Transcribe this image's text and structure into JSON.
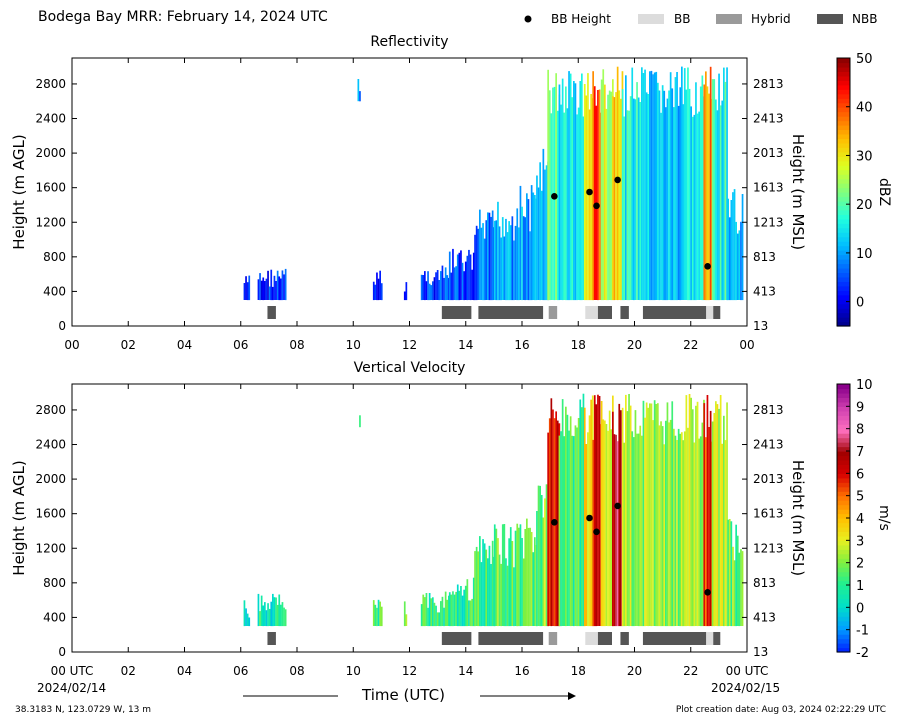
{
  "header": {
    "title": "Bodega Bay MRR:  February 14, 2024 UTC",
    "legend": [
      {
        "label": "BB Height",
        "kind": "marker",
        "color": "#000000"
      },
      {
        "label": "BB",
        "kind": "swatch",
        "color": "#dcdcdc"
      },
      {
        "label": "Hybrid",
        "kind": "swatch",
        "color": "#9a9a9a"
      },
      {
        "label": "NBB",
        "kind": "swatch",
        "color": "#555555"
      }
    ]
  },
  "chart_data": [
    {
      "type": "heatmap",
      "title": "Reflectivity",
      "ylabel": "Height (m AGL)",
      "ylabel_right": "Height (m MSL)",
      "x_ticks": [
        "00",
        "02",
        "04",
        "06",
        "08",
        "10",
        "12",
        "14",
        "16",
        "18",
        "20",
        "22",
        "00"
      ],
      "xlim": [
        0,
        24
      ],
      "y_ticks": [
        0,
        400,
        800,
        1200,
        1600,
        2000,
        2400,
        2800
      ],
      "ylim": [
        0,
        3100
      ],
      "y_right_ticks": [
        13,
        413,
        813,
        1213,
        1613,
        2013,
        2413,
        2813
      ],
      "colorbar": {
        "label": "dBZ",
        "ticks": [
          0,
          10,
          20,
          30,
          40,
          50
        ],
        "range": [
          -5,
          50
        ]
      },
      "bb_height_points": [
        [
          17.15,
          1500
        ],
        [
          18.4,
          1550
        ],
        [
          18.65,
          1390
        ],
        [
          19.4,
          1690
        ],
        [
          22.6,
          690
        ]
      ],
      "classification_bars": [
        {
          "class": "NBB",
          "start": 6.95,
          "end": 7.25
        },
        {
          "class": "NBB",
          "start": 13.15,
          "end": 14.2
        },
        {
          "class": "NBB",
          "start": 14.45,
          "end": 16.75
        },
        {
          "class": "Hybrid",
          "start": 16.95,
          "end": 17.25
        },
        {
          "class": "BB",
          "start": 18.25,
          "end": 18.7
        },
        {
          "class": "NBB",
          "start": 18.7,
          "end": 19.2
        },
        {
          "class": "NBB",
          "start": 19.5,
          "end": 19.8
        },
        {
          "class": "NBB",
          "start": 20.3,
          "end": 22.55
        },
        {
          "class": "BB",
          "start": 22.55,
          "end": 22.8
        },
        {
          "class": "NBB",
          "start": 22.8,
          "end": 23.05
        }
      ],
      "echo_columns": [
        {
          "start": 6.1,
          "end": 6.3,
          "top": 600,
          "value": 2
        },
        {
          "start": 6.6,
          "end": 7.6,
          "top": 680,
          "value": 3
        },
        {
          "start": 10.15,
          "end": 10.25,
          "top": 3000,
          "value": 8,
          "bottom": 2600
        },
        {
          "start": 10.7,
          "end": 11.0,
          "top": 650,
          "value": 3
        },
        {
          "start": 11.8,
          "end": 11.9,
          "top": 600,
          "value": 2
        },
        {
          "start": 12.4,
          "end": 13.4,
          "top": 700,
          "value": 4
        },
        {
          "start": 13.4,
          "end": 14.3,
          "top": 900,
          "value": 5
        },
        {
          "start": 14.3,
          "end": 15.0,
          "top": 1350,
          "value": 7
        },
        {
          "start": 15.0,
          "end": 15.8,
          "top": 1500,
          "value": 9
        },
        {
          "start": 15.8,
          "end": 16.5,
          "top": 1650,
          "value": 10
        },
        {
          "start": 16.5,
          "end": 16.9,
          "top": 2100,
          "value": 13
        },
        {
          "start": 16.9,
          "end": 17.3,
          "top": 3000,
          "value": 22
        },
        {
          "start": 17.3,
          "end": 18.2,
          "top": 3000,
          "value": 14
        },
        {
          "start": 18.2,
          "end": 18.5,
          "top": 3000,
          "value": 30
        },
        {
          "start": 18.5,
          "end": 18.8,
          "top": 3000,
          "value": 40
        },
        {
          "start": 18.8,
          "end": 19.2,
          "top": 3000,
          "value": 26
        },
        {
          "start": 19.2,
          "end": 19.55,
          "top": 3000,
          "value": 34
        },
        {
          "start": 19.55,
          "end": 20.4,
          "top": 3000,
          "value": 16
        },
        {
          "start": 20.4,
          "end": 21.7,
          "top": 3000,
          "value": 12
        },
        {
          "start": 21.7,
          "end": 22.45,
          "top": 3000,
          "value": 15
        },
        {
          "start": 22.45,
          "end": 22.75,
          "top": 3000,
          "value": 36
        },
        {
          "start": 22.75,
          "end": 23.3,
          "top": 3000,
          "value": 17
        },
        {
          "start": 23.3,
          "end": 23.85,
          "top": 1600,
          "value": 12
        }
      ]
    },
    {
      "type": "heatmap",
      "title": "Vertical Velocity",
      "ylabel": "Height (m AGL)",
      "ylabel_right": "Height (m MSL)",
      "x_ticks": [
        "00 UTC",
        "02",
        "04",
        "06",
        "08",
        "10",
        "12",
        "14",
        "16",
        "18",
        "20",
        "22",
        "00 UTC"
      ],
      "xlim": [
        0,
        24
      ],
      "y_ticks": [
        0,
        400,
        800,
        1200,
        1600,
        2000,
        2400,
        2800
      ],
      "ylim": [
        0,
        3100
      ],
      "y_right_ticks": [
        13,
        413,
        813,
        1213,
        1613,
        2013,
        2413,
        2813
      ],
      "colorbar": {
        "label": "m/s",
        "ticks": [
          -2,
          -1,
          0,
          1,
          2,
          3,
          4,
          5,
          6,
          7,
          8,
          9,
          10
        ],
        "range": [
          -2,
          10
        ]
      },
      "bb_height_points": [
        [
          17.15,
          1500
        ],
        [
          18.4,
          1550
        ],
        [
          18.65,
          1390
        ],
        [
          19.4,
          1690
        ],
        [
          22.6,
          690
        ]
      ],
      "classification_bars": [
        {
          "class": "NBB",
          "start": 6.95,
          "end": 7.25
        },
        {
          "class": "NBB",
          "start": 13.15,
          "end": 14.2
        },
        {
          "class": "NBB",
          "start": 14.45,
          "end": 16.75
        },
        {
          "class": "Hybrid",
          "start": 16.95,
          "end": 17.25
        },
        {
          "class": "BB",
          "start": 18.25,
          "end": 18.7
        },
        {
          "class": "NBB",
          "start": 18.7,
          "end": 19.2
        },
        {
          "class": "NBB",
          "start": 19.5,
          "end": 19.8
        },
        {
          "class": "NBB",
          "start": 20.3,
          "end": 22.55
        },
        {
          "class": "BB",
          "start": 22.55,
          "end": 22.8
        },
        {
          "class": "NBB",
          "start": 22.8,
          "end": 23.05
        }
      ],
      "echo_columns": [
        {
          "start": 6.1,
          "end": 6.3,
          "top": 600,
          "value": 0.5
        },
        {
          "start": 6.6,
          "end": 7.6,
          "top": 680,
          "value": 0.6
        },
        {
          "start": 10.15,
          "end": 10.25,
          "top": 3000,
          "value": 1.5,
          "bottom": 2600
        },
        {
          "start": 10.7,
          "end": 11.0,
          "top": 650,
          "value": 1.2
        },
        {
          "start": 11.8,
          "end": 11.9,
          "top": 600,
          "value": 1.5
        },
        {
          "start": 12.4,
          "end": 13.4,
          "top": 700,
          "value": 1.0
        },
        {
          "start": 13.4,
          "end": 14.3,
          "top": 900,
          "value": 0.8
        },
        {
          "start": 14.3,
          "end": 15.0,
          "top": 1350,
          "value": 1.3
        },
        {
          "start": 15.0,
          "end": 15.8,
          "top": 1500,
          "value": 1.5
        },
        {
          "start": 15.8,
          "end": 16.5,
          "top": 1650,
          "value": 1.7
        },
        {
          "start": 16.5,
          "end": 16.9,
          "top": 2100,
          "value": 2.0
        },
        {
          "start": 16.9,
          "end": 17.3,
          "top": 3000,
          "value": 5.8
        },
        {
          "start": 17.3,
          "end": 18.2,
          "top": 3000,
          "value": 1.2
        },
        {
          "start": 18.2,
          "end": 18.5,
          "top": 3000,
          "value": 3.5
        },
        {
          "start": 18.5,
          "end": 18.8,
          "top": 3000,
          "value": 6.0
        },
        {
          "start": 18.8,
          "end": 19.2,
          "top": 3000,
          "value": 3.0
        },
        {
          "start": 19.2,
          "end": 19.55,
          "top": 3000,
          "value": 7.3
        },
        {
          "start": 19.55,
          "end": 20.4,
          "top": 3000,
          "value": 2.3
        },
        {
          "start": 20.4,
          "end": 21.7,
          "top": 3000,
          "value": 2.0
        },
        {
          "start": 21.7,
          "end": 22.45,
          "top": 3000,
          "value": 2.6
        },
        {
          "start": 22.45,
          "end": 22.75,
          "top": 3000,
          "value": 5.5
        },
        {
          "start": 22.75,
          "end": 23.3,
          "top": 3000,
          "value": 2.5
        },
        {
          "start": 23.3,
          "end": 23.85,
          "top": 1600,
          "value": 1.6
        }
      ]
    }
  ],
  "footer": {
    "start_date": "2024/02/14",
    "end_date": "2024/02/15",
    "xlabel": "Time (UTC)",
    "location": "38.3183 N, 123.0729 W, 13 m",
    "created": "Plot creation date: Aug 03, 2024 02:22:29 UTC"
  }
}
